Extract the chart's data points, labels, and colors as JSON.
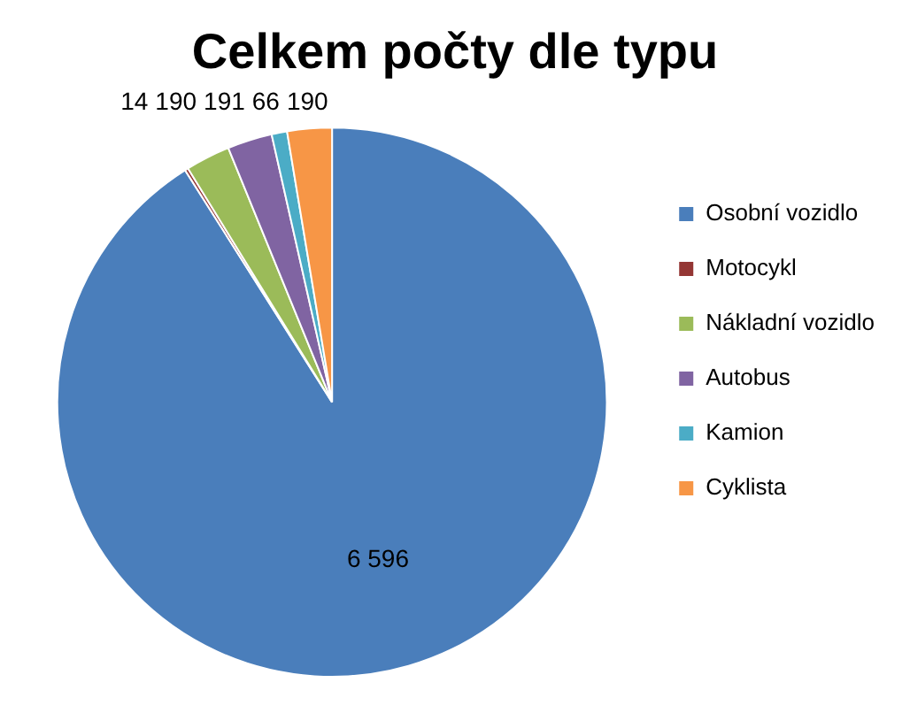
{
  "chart_data": {
    "type": "pie",
    "title": "Celkem počty dle typu",
    "categories": [
      "Osobní vozidlo",
      "Motocykl",
      "Nákladní vozidlo",
      "Autobus",
      "Kamion",
      "Cyklista"
    ],
    "values": [
      6596,
      14,
      190,
      191,
      66,
      190
    ],
    "colors": [
      "#4a7ebb",
      "#943634",
      "#9bbb59",
      "#8064a2",
      "#4bacc6",
      "#f79646"
    ],
    "value_labels": [
      "6 596",
      "14",
      "190",
      "191",
      "66",
      "190"
    ],
    "legend": "right"
  }
}
